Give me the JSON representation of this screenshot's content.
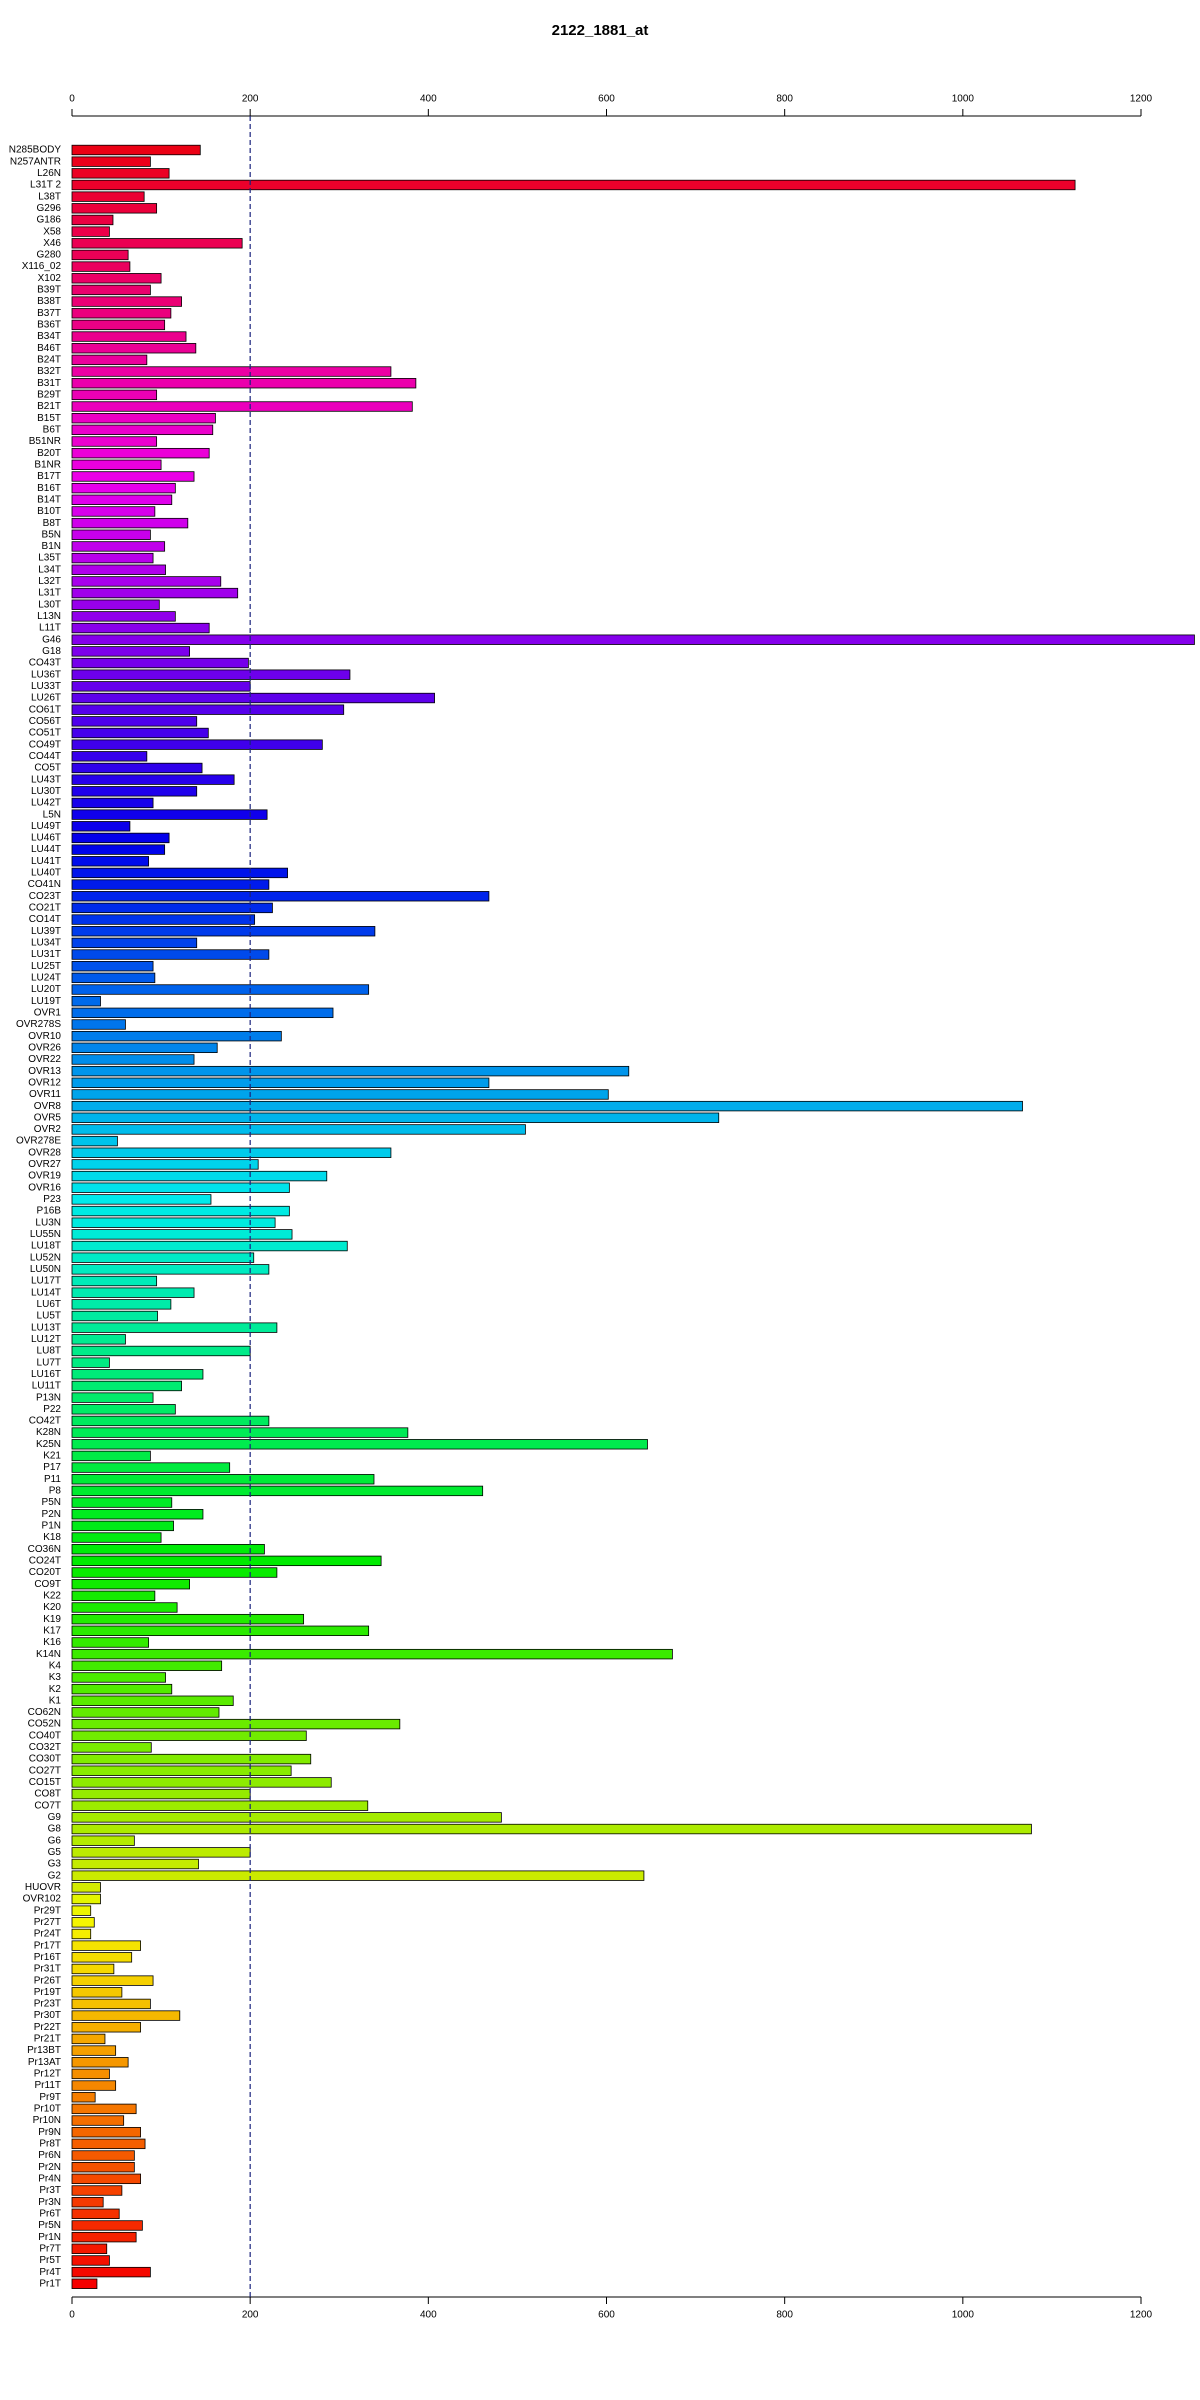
{
  "chart_data": {
    "type": "bar",
    "orientation": "horizontal",
    "title": "2122_1881_at",
    "categories": [
      "N285BODY",
      "N257ANTR",
      "L26N",
      "L31T 2",
      "L38T",
      "G296",
      "G186",
      "X58",
      "X46",
      "G280",
      "X116_02",
      "X102",
      "B39T",
      "B38T",
      "B37T",
      "B36T",
      "B34T",
      "B46T",
      "B24T",
      "B32T",
      "B31T",
      "B29T",
      "B21T",
      "B15T",
      "B6T",
      "B51NR",
      "B20T",
      "B1NR",
      "B17T",
      "B16T",
      "B14T",
      "B10T",
      "B8T",
      "B5N",
      "B1N",
      "L35T",
      "L34T",
      "L32T",
      "L31T",
      "L30T",
      "L13N",
      "L11T",
      "G46",
      "G18",
      "CO43T",
      "LU36T",
      "LU33T",
      "LU26T",
      "CO61T",
      "CO56T",
      "CO51T",
      "CO49T",
      "CO44T",
      "CO5T",
      "LU43T",
      "LU30T",
      "LU42T",
      "L5N",
      "LU49T",
      "LU46T",
      "LU44T",
      "LU41T",
      "LU40T",
      "CO41N",
      "CO23T",
      "CO21T",
      "CO14T",
      "LU39T",
      "LU34T",
      "LU31T",
      "LU25T",
      "LU24T",
      "LU20T",
      "LU19T",
      "OVR1",
      "OVR278S",
      "OVR10",
      "OVR26",
      "OVR22",
      "OVR13",
      "OVR12",
      "OVR11",
      "OVR8",
      "OVR5",
      "OVR2",
      "OVR278E",
      "OVR28",
      "OVR27",
      "OVR19",
      "OVR16",
      "P23",
      "P16B",
      "LU3N",
      "LU55N",
      "LU18T",
      "LU52N",
      "LU50N",
      "LU17T",
      "LU14T",
      "LU6T",
      "LU5T",
      "LU13T",
      "LU12T",
      "LU8T",
      "LU7T",
      "LU16T",
      "LU11T",
      "P13N",
      "P22",
      "CO42T",
      "K28N",
      "K25N",
      "K21",
      "P17",
      "P11",
      "P8",
      "P5N",
      "P2N",
      "P1N",
      "K18",
      "CO36N",
      "CO24T",
      "CO20T",
      "CO9T",
      "K22",
      "K20",
      "K19",
      "K17",
      "K16",
      "K14N",
      "K4",
      "K3",
      "K2",
      "K1",
      "CO62N",
      "CO52N",
      "CO40T",
      "CO32T",
      "CO30T",
      "CO27T",
      "CO15T",
      "CO8T",
      "CO7T",
      "G9",
      "G8",
      "G6",
      "G5",
      "G3",
      "G2",
      "HUOVR",
      "OVR102",
      "Pr29T",
      "Pr27T",
      "Pr24T",
      "Pr17T",
      "Pr16T",
      "Pr31T",
      "Pr26T",
      "Pr19T",
      "Pr23T",
      "Pr30T",
      "Pr22T",
      "Pr21T",
      "Pr13BT",
      "Pr13AT",
      "Pr12T",
      "Pr11T",
      "Pr9T",
      "Pr10T",
      "Pr10N",
      "Pr9N",
      "Pr8T",
      "Pr6N",
      "Pr2N",
      "Pr4N",
      "Pr3T",
      "Pr3N",
      "Pr6T",
      "Pr5N",
      "Pr1N",
      "Pr7T",
      "Pr5T",
      "Pr4T",
      "Pr1T"
    ],
    "values": [
      144,
      88,
      109,
      1126,
      81,
      95,
      46,
      42,
      191,
      63,
      65,
      100,
      88,
      123,
      111,
      104,
      128,
      139,
      84,
      358,
      386,
      95,
      382,
      161,
      158,
      95,
      154,
      100,
      137,
      116,
      112,
      93,
      130,
      88,
      104,
      91,
      105,
      167,
      186,
      98,
      116,
      154,
      1260,
      132,
      198,
      312,
      200,
      407,
      305,
      140,
      153,
      281,
      84,
      146,
      182,
      140,
      91,
      219,
      65,
      109,
      104,
      86,
      242,
      221,
      468,
      225,
      205,
      340,
      140,
      221,
      91,
      93,
      333,
      32,
      293,
      60,
      235,
      163,
      137,
      625,
      468,
      602,
      1067,
      726,
      509,
      51,
      358,
      209,
      286,
      244,
      156,
      244,
      228,
      247,
      309,
      204,
      221,
      95,
      137,
      111,
      96,
      230,
      60,
      200,
      42,
      147,
      123,
      91,
      116,
      221,
      377,
      646,
      88,
      177,
      339,
      461,
      112,
      147,
      114,
      100,
      216,
      347,
      230,
      132,
      93,
      118,
      260,
      333,
      86,
      674,
      168,
      105,
      112,
      181,
      165,
      368,
      263,
      89,
      268,
      246,
      291,
      200,
      332,
      482,
      1077,
      70,
      200,
      142,
      642,
      32,
      32,
      21,
      25,
      21,
      77,
      67,
      47,
      91,
      56,
      88,
      121,
      77,
      37,
      49,
      63,
      42,
      49,
      26,
      72,
      58,
      77,
      82,
      70,
      70,
      77,
      56,
      35,
      53,
      79,
      72,
      39,
      42,
      88,
      28
    ],
    "colors": [
      "hsl(355,100%,46%)",
      "hsl(353,100%,46%)",
      "hsl(351,100%,46%)",
      "hsl(349,100%,46%)",
      "hsl(347,100%,46%)",
      "hsl(345,100%,46%)",
      "hsl(343,100%,46%)",
      "hsl(341,100%,46%)",
      "hsl(339,100%,46%)",
      "hsl(338,100%,46%)",
      "hsl(336,100%,46%)",
      "hsl(334,100%,46%)",
      "hsl(332,100%,46%)",
      "hsl(330,100%,46%)",
      "hsl(328,100%,46%)",
      "hsl(326,100%,46%)",
      "hsl(324,100%,46%)",
      "hsl(322,100%,46%)",
      "hsl(320,100%,46%)",
      "hsl(318,100%,46%)",
      "hsl(316,100%,46%)",
      "hsl(314,100%,46%)",
      "hsl(312,100%,46%)",
      "hsl(310,100%,46%)",
      "hsl(308,100%,46%)",
      "hsl(307,100%,46%)",
      "hsl(305,100%,46%)",
      "hsl(303,100%,46%)",
      "hsl(301,100%,46%)",
      "hsl(299,100%,46%)",
      "hsl(297,100%,46%)",
      "hsl(295,100%,46%)",
      "hsl(293,100%,46%)",
      "hsl(291,100%,46%)",
      "hsl(289,100%,46%)",
      "hsl(287,100%,46%)",
      "hsl(285,100%,46%)",
      "hsl(283,100%,46%)",
      "hsl(281,100%,46%)",
      "hsl(279,100%,46%)",
      "hsl(277,100%,46%)",
      "hsl(275,100%,46%)",
      "hsl(274,100%,46%)",
      "hsl(272,100%,46%)",
      "hsl(270,100%,46%)",
      "hsl(268,100%,46%)",
      "hsl(266,100%,46%)",
      "hsl(264,100%,46%)",
      "hsl(262,100%,46%)",
      "hsl(260,100%,46%)",
      "hsl(258,100%,46%)",
      "hsl(256,100%,46%)",
      "hsl(254,100%,46%)",
      "hsl(252,100%,46%)",
      "hsl(250,100%,46%)",
      "hsl(248,100%,46%)",
      "hsl(246,100%,46%)",
      "hsl(244,100%,46%)",
      "hsl(243,100%,46%)",
      "hsl(241,100%,46%)",
      "hsl(239,100%,46%)",
      "hsl(237,100%,46%)",
      "hsl(235,100%,46%)",
      "hsl(233,100%,46%)",
      "hsl(231,100%,46%)",
      "hsl(229,100%,46%)",
      "hsl(227,100%,46%)",
      "hsl(225,100%,46%)",
      "hsl(223,100%,46%)",
      "hsl(221,100%,46%)",
      "hsl(219,100%,46%)",
      "hsl(217,100%,46%)",
      "hsl(215,100%,46%)",
      "hsl(213,100%,46%)",
      "hsl(212,100%,46%)",
      "hsl(210,100%,46%)",
      "hsl(208,100%,46%)",
      "hsl(206,100%,46%)",
      "hsl(204,100%,46%)",
      "hsl(202,100%,46%)",
      "hsl(200,100%,46%)",
      "hsl(198,100%,46%)",
      "hsl(196,100%,46%)",
      "hsl(194,100%,46%)",
      "hsl(192,100%,46%)",
      "hsl(190,100%,46%)",
      "hsl(188,100%,46%)",
      "hsl(186,100%,46%)",
      "hsl(184,100%,46%)",
      "hsl(182,100%,46%)",
      "hsl(180,100%,46%)",
      "hsl(178,100%,46%)",
      "hsl(177,100%,46%)",
      "hsl(175,100%,46%)",
      "hsl(173,100%,46%)",
      "hsl(171,100%,46%)",
      "hsl(169,100%,46%)",
      "hsl(167,100%,46%)",
      "hsl(165,100%,46%)",
      "hsl(163,100%,46%)",
      "hsl(161,100%,46%)",
      "hsl(159,100%,46%)",
      "hsl(157,100%,46%)",
      "hsl(155,100%,46%)",
      "hsl(153,100%,46%)",
      "hsl(151,100%,46%)",
      "hsl(149,100%,46%)",
      "hsl(147,100%,46%)",
      "hsl(146,100%,46%)",
      "hsl(144,100%,46%)",
      "hsl(142,100%,46%)",
      "hsl(140,100%,46%)",
      "hsl(138,100%,46%)",
      "hsl(136,100%,46%)",
      "hsl(134,100%,46%)",
      "hsl(132,100%,46%)",
      "hsl(130,100%,46%)",
      "hsl(128,100%,46%)",
      "hsl(126,100%,46%)",
      "hsl(124,100%,46%)",
      "hsl(122,100%,46%)",
      "hsl(120,100%,46%)",
      "hsl(118,100%,46%)",
      "hsl(116,100%,46%)",
      "hsl(115,100%,46%)",
      "hsl(113,100%,46%)",
      "hsl(111,100%,46%)",
      "hsl(109,100%,46%)",
      "hsl(107,100%,46%)",
      "hsl(105,100%,46%)",
      "hsl(103,100%,46%)",
      "hsl(101,100%,46%)",
      "hsl(99,100%,46%)",
      "hsl(97,100%,46%)",
      "hsl(95,100%,46%)",
      "hsl(93,100%,46%)",
      "hsl(91,100%,46%)",
      "hsl(89,100%,46%)",
      "hsl(87,100%,46%)",
      "hsl(85,100%,46%)",
      "hsl(84,100%,46%)",
      "hsl(82,100%,46%)",
      "hsl(80,100%,46%)",
      "hsl(78,100%,46%)",
      "hsl(76,100%,46%)",
      "hsl(74,100%,46%)",
      "hsl(72,100%,46%)",
      "hsl(70,100%,46%)",
      "hsl(68,100%,46%)",
      "hsl(66,100%,46%)",
      "hsl(64,100%,48%)",
      "hsl(62,100%,48%)",
      "hsl(60,100%,48%)",
      "hsl(58,100%,48%)",
      "hsl(56,100%,48%)",
      "hsl(54,100%,48%)",
      "hsl(53,100%,48%)",
      "hsl(51,100%,48%)",
      "hsl(49,100%,48%)",
      "hsl(47,100%,48%)",
      "hsl(45,100%,48%)",
      "hsl(43,100%,48%)",
      "hsl(41,100%,48%)",
      "hsl(39,100%,48%)",
      "hsl(37,100%,48%)",
      "hsl(35,100%,48%)",
      "hsl(33,100%,48%)",
      "hsl(31,100%,48%)",
      "hsl(29,100%,48%)",
      "hsl(27,100%,48%)",
      "hsl(25,100%,48%)",
      "hsl(23,100%,48%)",
      "hsl(22,100%,48%)",
      "hsl(20,100%,48%)",
      "hsl(18,100%,48%)",
      "hsl(16,100%,48%)",
      "hsl(14,100%,48%)",
      "hsl(12,100%,48%)",
      "hsl(10,100%,48%)",
      "hsl(8,100%,48%)",
      "hsl(6,100%,48%)",
      "hsl(4,100%,48%)",
      "hsl(2,100%,48%)",
      "hsl(0,100%,48%)"
    ],
    "xlim": [
      0,
      1200
    ],
    "xticks": [
      0,
      200,
      400,
      600,
      800,
      1000,
      1200
    ],
    "reference_line": 200,
    "grid": false
  }
}
